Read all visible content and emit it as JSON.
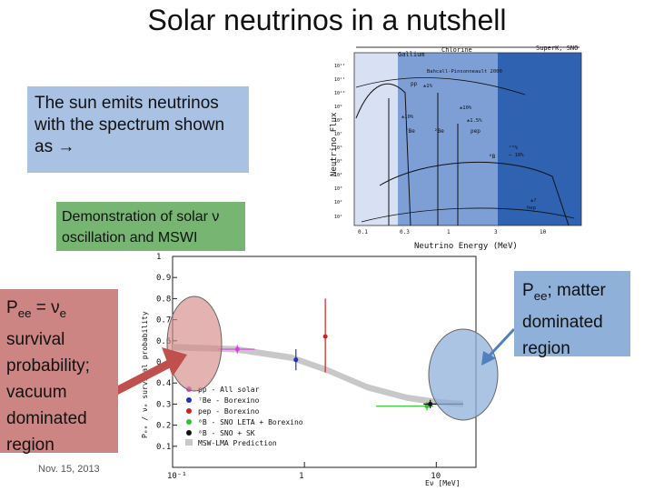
{
  "slide": {
    "title": "Solar neutrinos in a nutshell",
    "sun_box": "The sun emits neutrinos with the spectrum shown as →",
    "demo_box": "Demonstration of solar ν oscillation and MSWI",
    "pee_box": {
      "p": "P",
      "sub": "ee",
      "rest": " = ν",
      "nu_sub": "e",
      "tail": " survival probability; vacuum dominated region"
    },
    "matter_box": {
      "p": "P",
      "sub": "ee",
      "tail": "; matter dominated region"
    },
    "date": "Nov. 15, 2013"
  },
  "colors": {
    "sun_box": "#a9c1e2",
    "demo_box": "#77b672",
    "pee_box": "#cd8584",
    "matter_box": "#8fb0d9",
    "red_arrow": "#c0504d",
    "blue_arrow": "#4f81bd"
  },
  "chart_data": [
    {
      "type": "line",
      "top_bands": [
        "Gallium",
        "Chlorine",
        "SuperK, SNO"
      ],
      "xlabel": "Neutrino Energy (MeV)",
      "ylabel": "Neutrino Flux",
      "x_ticks": [
        "0.1",
        "0.3",
        "1",
        "3",
        "10"
      ],
      "y_ticks": [
        "10¹²",
        "10¹¹",
        "10¹⁰",
        "10⁹",
        "10⁸",
        "10⁷",
        "10⁶",
        "10⁵",
        "10⁴",
        "10³",
        "10²",
        "10¹"
      ],
      "log_x": true,
      "log_y": true,
      "annotations": [
        "Bahcall-Pinsonneault 2000",
        "pp",
        "±1%",
        "±10%",
        "±10%",
        "±1.5%",
        "⁷Be",
        "²Be",
        "pep",
        "²⁰%",
        "− 10%",
        "⁸B",
        "±?",
        "hep"
      ]
    },
    {
      "type": "scatter",
      "xlabel": "Eν [MeV]",
      "ylabel": "Pₑₑ / νₑ survival probability",
      "x_ticks": [
        "10⁻¹",
        "1",
        "10"
      ],
      "y_ticks": [
        "1",
        "0.9",
        "0.8",
        "0.7",
        "0.6",
        "0.5",
        "0.4",
        "0.3",
        "0.2",
        "0.1"
      ],
      "xlim": [
        0.1,
        20
      ],
      "ylim": [
        0,
        1
      ],
      "log_x": true,
      "series": [
        {
          "name": "pp - All solar",
          "color": "#e040e0",
          "points": [
            {
              "x": 0.31,
              "y": 0.56,
              "xlo": 0.22,
              "xhi": 0.42,
              "ylo": 0.54,
              "yhi": 0.58
            }
          ]
        },
        {
          "name": "⁷Be - Borexino",
          "color": "#2030c0",
          "points": [
            {
              "x": 0.862,
              "y": 0.51,
              "ylo": 0.46,
              "yhi": 0.56
            }
          ]
        },
        {
          "name": "pep - Borexino",
          "color": "#d02020",
          "points": [
            {
              "x": 1.44,
              "y": 0.62,
              "ylo": 0.45,
              "yhi": 0.8
            }
          ]
        },
        {
          "name": "⁸B - SNO LETA + Borexino",
          "color": "#30c030",
          "points": [
            {
              "x": 8.5,
              "y": 0.29,
              "xlo": 3.5,
              "xhi": 9.5,
              "ylo": 0.27,
              "yhi": 0.31
            }
          ]
        },
        {
          "name": "⁸B - SNO + SK",
          "color": "#111111",
          "points": [
            {
              "x": 9.0,
              "y": 0.3,
              "xlo": 8.0,
              "xhi": 16.0,
              "ylo": 0.28,
              "yhi": 0.32
            }
          ]
        }
      ],
      "band": {
        "name": "MSW-LMA Prediction",
        "color": "#c8c8c8"
      }
    }
  ]
}
